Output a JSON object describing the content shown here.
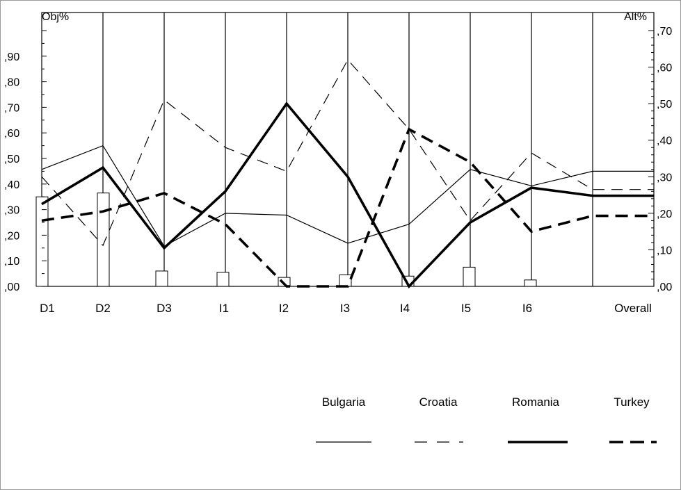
{
  "chart_data": {
    "type": "line",
    "left_axis_title": "Obj%",
    "right_axis_title": "Alt%",
    "left_ticks": [
      ",00",
      ",10",
      ",20",
      ",30",
      ",40",
      ",50",
      ",60",
      ",70",
      ",80",
      ",90"
    ],
    "right_ticks": [
      ",00",
      ",10",
      ",20",
      ",30",
      ",40",
      ",50",
      ",60",
      ",70"
    ],
    "left_ylim": [
      0,
      1.0
    ],
    "right_ylim": [
      0,
      0.7
    ],
    "categories": [
      "D1",
      "D2",
      "D3",
      "I1",
      "I2",
      "I3",
      "I4",
      "I5",
      "I6",
      "Overall"
    ],
    "bars": {
      "axis": "left",
      "values": [
        0.35,
        0.365,
        0.06,
        0.055,
        0.035,
        0.045,
        0.04,
        0.075,
        0.025
      ]
    },
    "series": [
      {
        "name": "Bulgaria",
        "axis": "right",
        "style": "thin-solid",
        "values": [
          0.32,
          0.385,
          0.11,
          0.2,
          0.195,
          0.118,
          0.17,
          0.32,
          0.275,
          0.315
        ]
      },
      {
        "name": "Croatia",
        "axis": "right",
        "style": "thin-dashed",
        "values": [
          0.3,
          0.112,
          0.51,
          0.38,
          0.315,
          0.62,
          0.43,
          0.18,
          0.365,
          0.265
        ]
      },
      {
        "name": "Romania",
        "axis": "right",
        "style": "thick-solid",
        "values": [
          0.225,
          0.325,
          0.105,
          0.26,
          0.5,
          0.3,
          0.0,
          0.175,
          0.27,
          0.248
        ]
      },
      {
        "name": "Turkey",
        "axis": "right",
        "style": "thick-dashed",
        "values": [
          0.18,
          0.205,
          0.255,
          0.17,
          0.0,
          0.0,
          0.43,
          0.34,
          0.15,
          0.193
        ]
      }
    ],
    "grid": "vertical lines at each category",
    "legend_position": "bottom-right"
  }
}
